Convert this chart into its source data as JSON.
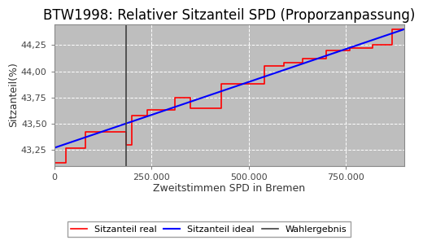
{
  "title": "BTW1998: Relativer Sitzanteil SPD (Proporzanpassung)",
  "xlabel": "Zweitstimmen SPD in Bremen",
  "ylabel": "Sitzanteil(%)",
  "xlim": [
    0,
    900000
  ],
  "ylim": [
    43.1,
    44.45
  ],
  "yticks": [
    43.25,
    43.5,
    43.75,
    44.0,
    44.25
  ],
  "xticks": [
    0,
    250000,
    500000,
    750000
  ],
  "wahlergebnis_x": 185000,
  "plot_bg_color": "#bebebe",
  "fig_bg_color": "#ffffff",
  "grid_color": "#ffffff",
  "title_fontsize": 12,
  "label_fontsize": 9,
  "tick_fontsize": 8,
  "legend_labels": [
    "Sitzanteil real",
    "Sitzanteil ideal",
    "Wahlergebnis"
  ],
  "legend_colors": [
    "#ff0000",
    "#0000ff",
    "#404040"
  ],
  "ideal_start_x": 0,
  "ideal_start_y": 43.27,
  "ideal_end_x": 900000,
  "ideal_end_y": 44.4,
  "real_x": [
    0,
    30000,
    30000,
    80000,
    80000,
    185000,
    185000,
    200000,
    200000,
    240000,
    240000,
    310000,
    310000,
    350000,
    350000,
    430000,
    430000,
    490000,
    490000,
    540000,
    540000,
    590000,
    590000,
    640000,
    640000,
    700000,
    700000,
    760000,
    760000,
    820000,
    820000,
    870000,
    870000,
    900000
  ],
  "real_y": [
    43.13,
    43.13,
    43.27,
    43.27,
    43.42,
    43.42,
    43.3,
    43.3,
    43.58,
    43.58,
    43.63,
    43.63,
    43.75,
    43.75,
    43.65,
    43.65,
    43.88,
    43.88,
    43.88,
    43.88,
    44.05,
    44.05,
    44.08,
    44.08,
    44.12,
    44.12,
    44.2,
    44.2,
    44.22,
    44.22,
    44.25,
    44.25,
    44.4,
    44.4
  ]
}
